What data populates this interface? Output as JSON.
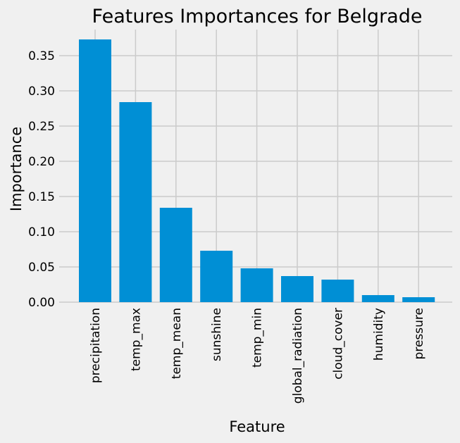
{
  "chart_data": {
    "type": "bar",
    "title": "Features Importances for Belgrade",
    "xlabel": "Feature",
    "ylabel": "Importance",
    "categories": [
      "precipitation",
      "temp_max",
      "temp_mean",
      "sunshine",
      "temp_min",
      "global_radiation",
      "cloud_cover",
      "humidity",
      "pressure"
    ],
    "values": [
      0.373,
      0.284,
      0.134,
      0.073,
      0.048,
      0.037,
      0.032,
      0.01,
      0.007
    ],
    "ylim": [
      0,
      0.387
    ],
    "yticks": [
      "0.00",
      "0.05",
      "0.10",
      "0.15",
      "0.20",
      "0.25",
      "0.30",
      "0.35"
    ],
    "grid": true,
    "bar_color": "#008fd5",
    "background_color": "#f0f0f0",
    "grid_color": "#cbcbcb"
  }
}
